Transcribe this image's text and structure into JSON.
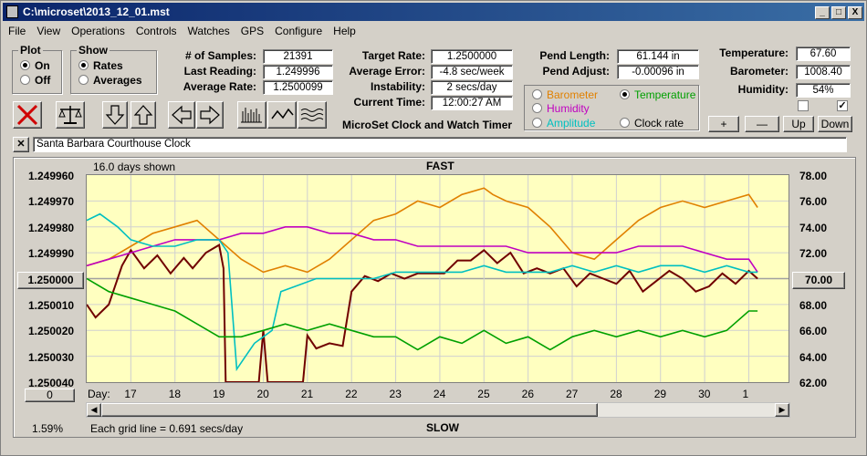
{
  "window": {
    "title": "C:\\microset\\2013_12_01.mst",
    "min": "_",
    "max": "□",
    "close": "X"
  },
  "menu": [
    "File",
    "View",
    "Operations",
    "Controls",
    "Watches",
    "GPS",
    "Configure",
    "Help"
  ],
  "plot_group": {
    "title": "Plot",
    "on": "On",
    "off": "Off",
    "selected": "On"
  },
  "show_group": {
    "title": "Show",
    "rates": "Rates",
    "averages": "Averages",
    "selected": "Rates"
  },
  "stats": {
    "samples_label": "# of Samples:",
    "samples": "21391",
    "last_label": "Last Reading:",
    "last": "1.249996",
    "avg_label": "Average Rate:",
    "avg": "1.2500099",
    "target_label": "Target Rate:",
    "target": "1.2500000",
    "avgerr_label": "Average Error:",
    "avgerr": "-4.8 sec/week",
    "instab_label": "Instability:",
    "instab": "2 secs/day",
    "time_label": "Current Time:",
    "time": "12:00:27 AM",
    "pendlen_label": "Pend Length:",
    "pendlen": "61.144 in",
    "pendadj_label": "Pend Adjust:",
    "pendadj": "-0.00096 in",
    "temp_label": "Temperature:",
    "temp": "67.60",
    "baro_label": "Barometer:",
    "baro": "1008.40",
    "hum_label": "Humidity:",
    "hum": "54%"
  },
  "series_select": {
    "barometer": "Barometer",
    "temperature": "Temperature",
    "humidity": "Humidity",
    "amplitude": "Amplitude",
    "clock_rate": "Clock rate",
    "selected": "Temperature",
    "colors": {
      "barometer": "#e08000",
      "temperature": "#00a000",
      "humidity": "#c000c0",
      "amplitude": "#00c0c0",
      "clock_rate": "#000000"
    }
  },
  "right_buttons": {
    "plus": "+",
    "minus": "—",
    "up": "Up",
    "down": "Down"
  },
  "app_caption": "MicroSet Clock and Watch Timer",
  "clock_name": "Santa Barbara Courthouse Clock",
  "chart_header": {
    "days_shown": "16.0 days shown",
    "fast": "FAST",
    "slow": "SLOW",
    "grid_note": "Each grid line = 0.691 secs/day",
    "percent": "1.59%",
    "zero_button": "0",
    "left_value_button": "1.250000",
    "right_value_button": "70.00"
  },
  "chart_data": {
    "type": "line",
    "left_ticks": [
      "1.249960",
      "1.249970",
      "1.249980",
      "1.249990",
      "1.250000",
      "1.250010",
      "1.250020",
      "1.250030",
      "1.250040"
    ],
    "right_ticks": [
      "78.00",
      "76.00",
      "74.00",
      "72.00",
      "70.00",
      "68.00",
      "66.00",
      "64.00",
      "62.00"
    ],
    "x_label": "Day:",
    "x_ticks": [
      "17",
      "18",
      "19",
      "20",
      "21",
      "22",
      "23",
      "24",
      "25",
      "26",
      "27",
      "28",
      "29",
      "30",
      "1"
    ],
    "series": [
      {
        "name": "Clock rate",
        "color": "#700000",
        "x": [
          16.0,
          16.2,
          16.5,
          16.8,
          17.0,
          17.3,
          17.6,
          17.9,
          18.2,
          18.4,
          18.7,
          19.0,
          19.1,
          19.15,
          19.3,
          19.6,
          19.9,
          20.0,
          20.1,
          20.3,
          20.6,
          20.9,
          21.0,
          21.2,
          21.5,
          21.8,
          22.0,
          22.3,
          22.6,
          22.9,
          23.2,
          23.5,
          23.8,
          24.1,
          24.4,
          24.7,
          25.0,
          25.3,
          25.6,
          25.9,
          26.2,
          26.5,
          26.8,
          27.1,
          27.4,
          27.7,
          28.0,
          28.3,
          28.6,
          28.9,
          29.2,
          29.5,
          29.8,
          30.1,
          30.4,
          30.7,
          31.0,
          31.2
        ],
        "values": [
          1.25001,
          1.250015,
          1.25001,
          1.249995,
          1.249989,
          1.249996,
          1.249991,
          1.249998,
          1.249992,
          1.249996,
          1.24999,
          1.249987,
          1.249996,
          1.25004,
          1.25004,
          1.25004,
          1.25004,
          1.25002,
          1.25004,
          1.25004,
          1.25004,
          1.25004,
          1.250022,
          1.250027,
          1.250025,
          1.250026,
          1.250005,
          1.249999,
          1.250001,
          1.249998,
          1.25,
          1.249998,
          1.249998,
          1.249998,
          1.249993,
          1.249993,
          1.249989,
          1.249994,
          1.24999,
          1.249998,
          1.249996,
          1.249998,
          1.249996,
          1.250003,
          1.249998,
          1.25,
          1.250002,
          1.249997,
          1.250005,
          1.250001,
          1.249997,
          1.25,
          1.250005,
          1.250003,
          1.249998,
          1.250002,
          1.249997,
          1.25
        ]
      },
      {
        "name": "Barometer",
        "color": "#e08000",
        "x": [
          16.0,
          16.5,
          17.0,
          17.5,
          18.0,
          18.5,
          19.0,
          19.5,
          20.0,
          20.5,
          21.0,
          21.5,
          22.0,
          22.5,
          23.0,
          23.5,
          24.0,
          24.5,
          25.0,
          25.2,
          25.5,
          26.0,
          26.5,
          27.0,
          27.5,
          28.0,
          28.5,
          29.0,
          29.5,
          30.0,
          30.5,
          31.0,
          31.2
        ],
        "values": [
          71.0,
          71.5,
          72.5,
          73.5,
          74.0,
          74.5,
          73.0,
          71.5,
          70.5,
          71.0,
          70.5,
          71.5,
          73.0,
          74.5,
          75.0,
          76.0,
          75.5,
          76.5,
          77.0,
          76.5,
          76.0,
          75.5,
          74.0,
          72.0,
          71.5,
          73.0,
          74.5,
          75.5,
          76.0,
          75.5,
          76.0,
          76.5,
          75.5
        ]
      },
      {
        "name": "Humidity",
        "color": "#c000c0",
        "x": [
          16.0,
          16.5,
          17.0,
          17.5,
          18.0,
          18.5,
          19.0,
          19.5,
          20.0,
          20.5,
          21.0,
          21.5,
          22.0,
          22.5,
          23.0,
          23.5,
          24.0,
          24.5,
          25.0,
          25.5,
          26.0,
          26.5,
          27.0,
          27.5,
          28.0,
          28.5,
          29.0,
          29.5,
          30.0,
          30.5,
          31.0,
          31.2
        ],
        "values": [
          71.0,
          71.5,
          72.0,
          72.5,
          73.0,
          73.0,
          73.0,
          73.5,
          73.5,
          74.0,
          74.0,
          73.5,
          73.5,
          73.0,
          73.0,
          72.5,
          72.5,
          72.5,
          72.5,
          72.5,
          72.0,
          72.0,
          72.0,
          72.0,
          72.0,
          72.5,
          72.5,
          72.5,
          72.0,
          71.5,
          71.5,
          70.5
        ]
      },
      {
        "name": "Amplitude",
        "color": "#00c0c0",
        "x": [
          16.0,
          16.3,
          16.7,
          17.0,
          17.5,
          18.0,
          18.5,
          19.0,
          19.2,
          19.4,
          19.6,
          19.8,
          20.0,
          20.2,
          20.4,
          20.8,
          21.2,
          21.6,
          22.0,
          22.5,
          23.0,
          23.5,
          24.0,
          24.5,
          25.0,
          25.5,
          26.0,
          26.5,
          27.0,
          27.5,
          28.0,
          28.5,
          29.0,
          29.5,
          30.0,
          30.5,
          31.0,
          31.2
        ],
        "values": [
          74.5,
          75.0,
          74.0,
          73.0,
          72.5,
          72.5,
          73.0,
          73.0,
          72.0,
          63.0,
          64.0,
          65.0,
          65.5,
          66.0,
          69.0,
          69.5,
          70.0,
          70.0,
          70.0,
          70.0,
          70.5,
          70.5,
          70.5,
          70.5,
          71.0,
          70.5,
          70.5,
          70.5,
          71.0,
          70.5,
          71.0,
          70.5,
          71.0,
          71.0,
          70.5,
          71.0,
          70.5,
          70.5
        ]
      },
      {
        "name": "Temperature",
        "color": "#00a000",
        "x": [
          16.0,
          16.5,
          17.0,
          17.5,
          18.0,
          18.5,
          19.0,
          19.5,
          20.0,
          20.5,
          21.0,
          21.5,
          22.0,
          22.5,
          23.0,
          23.5,
          24.0,
          24.5,
          25.0,
          25.5,
          26.0,
          26.5,
          27.0,
          27.5,
          28.0,
          28.5,
          29.0,
          29.5,
          30.0,
          30.5,
          31.0,
          31.2
        ],
        "values": [
          70.0,
          69.0,
          68.5,
          68.0,
          67.5,
          66.5,
          65.5,
          65.5,
          66.0,
          66.5,
          66.0,
          66.5,
          66.0,
          65.5,
          65.5,
          64.5,
          65.5,
          65.0,
          66.0,
          65.0,
          65.5,
          64.5,
          65.5,
          66.0,
          65.5,
          66.0,
          65.5,
          66.0,
          65.5,
          66.0,
          67.5,
          67.5
        ]
      }
    ],
    "left_range": [
      1.24996,
      1.25004
    ],
    "right_range": [
      62.0,
      78.0
    ],
    "x_range": [
      16.0,
      31.9
    ],
    "grid": true
  }
}
